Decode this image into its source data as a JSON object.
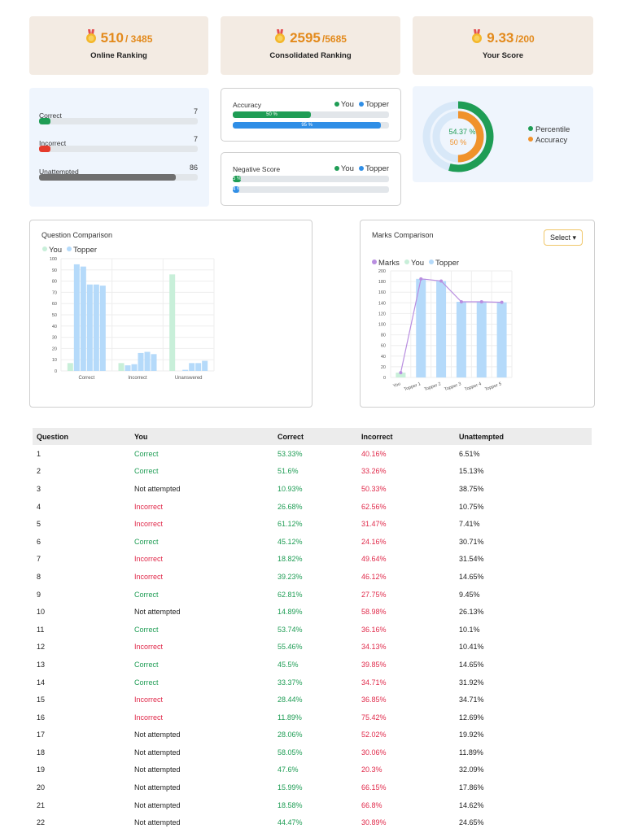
{
  "summary": {
    "online": {
      "value": "510",
      "total": "/ 3485",
      "label": "Online Ranking"
    },
    "consolidated": {
      "value": "2595",
      "total": "/5685",
      "label": "Consolidated Ranking"
    },
    "score": {
      "value": "9.33",
      "total": "/200",
      "label": "Your Score"
    }
  },
  "counts": {
    "correct": {
      "label": "Correct",
      "value": "7",
      "fraction": 0.07
    },
    "incorrect": {
      "label": "Incorrect",
      "value": "7",
      "fraction": 0.07
    },
    "unattempted": {
      "label": "Unattempted",
      "value": "86",
      "fraction": 0.86
    }
  },
  "accuracy": {
    "title": "Accuracy",
    "legend_you": "You",
    "legend_topper": "Topper",
    "you_label": "50 %",
    "you_value": 50,
    "topper_label": "95 %",
    "topper_value": 95
  },
  "negative": {
    "title": "Negative Score",
    "legend_you": "You",
    "legend_topper": "Topper",
    "you_label": "5 %",
    "you_value": 5,
    "topper_label": "4 %",
    "topper_value": 4
  },
  "donut": {
    "percentile_label": "54.37 %",
    "percentile_value": 54.37,
    "accuracy_label": "50 %",
    "accuracy_value": 50,
    "legend_percentile": "Percentile",
    "legend_accuracy": "Accuracy"
  },
  "colors": {
    "green": "#1f9d55",
    "red": "#e53b2c",
    "gray": "#6f6f6f",
    "orange": "#f0922b",
    "blue": "#2f8ee6",
    "you_light": "#c8efd9",
    "topper_light": "#b5dafa",
    "purple": "#b98ee0"
  },
  "question_comparison": {
    "title": "Question Comparison",
    "select_label": "",
    "chart_data": {
      "type": "bar",
      "categories": [
        "Correct",
        "Incorrect",
        "Unanswered"
      ],
      "ylim": [
        0,
        100
      ],
      "yticks": [
        0,
        10,
        20,
        30,
        40,
        50,
        60,
        70,
        80,
        90,
        100
      ],
      "series": [
        {
          "name": "You",
          "values": [
            7,
            7,
            86
          ]
        },
        {
          "name": "Topper",
          "values": [
            [
              95,
              93,
              77,
              77,
              76
            ],
            [
              5,
              6,
              16,
              17,
              15
            ],
            [
              0,
              1,
              7,
              7,
              9
            ]
          ]
        }
      ]
    }
  },
  "marks_comparison": {
    "title": "Marks Comparison",
    "select_label": "Select",
    "chart_data": {
      "type": "bar",
      "categories": [
        "You",
        "Topper 1",
        "Topper 2",
        "Topper 3",
        "Topper 4",
        "Topper 5"
      ],
      "ylim": [
        0,
        200
      ],
      "yticks": [
        0,
        20,
        40,
        60,
        80,
        100,
        120,
        140,
        160,
        180,
        200
      ],
      "series": [
        {
          "name": "Marks",
          "type": "line",
          "values": [
            9,
            185,
            181,
            142,
            142,
            141
          ]
        },
        {
          "name": "You",
          "values": [
            9,
            0,
            0,
            0,
            0,
            0
          ]
        },
        {
          "name": "Topper",
          "values": [
            0,
            185,
            181,
            142,
            142,
            141
          ]
        }
      ]
    }
  },
  "table": {
    "headers": [
      "Question",
      "You",
      "Correct",
      "Incorrect",
      "Unattempted"
    ],
    "rows": [
      [
        "1",
        "Correct",
        "53.33%",
        "40.16%",
        "6.51%"
      ],
      [
        "2",
        "Correct",
        "51.6%",
        "33.26%",
        "15.13%"
      ],
      [
        "3",
        "Not attempted",
        "10.93%",
        "50.33%",
        "38.75%"
      ],
      [
        "4",
        "Incorrect",
        "26.68%",
        "62.56%",
        "10.75%"
      ],
      [
        "5",
        "Incorrect",
        "61.12%",
        "31.47%",
        "7.41%"
      ],
      [
        "6",
        "Correct",
        "45.12%",
        "24.16%",
        "30.71%"
      ],
      [
        "7",
        "Incorrect",
        "18.82%",
        "49.64%",
        "31.54%"
      ],
      [
        "8",
        "Incorrect",
        "39.23%",
        "46.12%",
        "14.65%"
      ],
      [
        "9",
        "Correct",
        "62.81%",
        "27.75%",
        "9.45%"
      ],
      [
        "10",
        "Not attempted",
        "14.89%",
        "58.98%",
        "26.13%"
      ],
      [
        "11",
        "Correct",
        "53.74%",
        "36.16%",
        "10.1%"
      ],
      [
        "12",
        "Incorrect",
        "55.46%",
        "34.13%",
        "10.41%"
      ],
      [
        "13",
        "Correct",
        "45.5%",
        "39.85%",
        "14.65%"
      ],
      [
        "14",
        "Correct",
        "33.37%",
        "34.71%",
        "31.92%"
      ],
      [
        "15",
        "Incorrect",
        "28.44%",
        "36.85%",
        "34.71%"
      ],
      [
        "16",
        "Incorrect",
        "11.89%",
        "75.42%",
        "12.69%"
      ],
      [
        "17",
        "Not attempted",
        "28.06%",
        "52.02%",
        "19.92%"
      ],
      [
        "18",
        "Not attempted",
        "58.05%",
        "30.06%",
        "11.89%"
      ],
      [
        "19",
        "Not attempted",
        "47.6%",
        "20.3%",
        "32.09%"
      ],
      [
        "20",
        "Not attempted",
        "15.99%",
        "66.15%",
        "17.86%"
      ],
      [
        "21",
        "Not attempted",
        "18.58%",
        "66.8%",
        "14.62%"
      ],
      [
        "22",
        "Not attempted",
        "44.47%",
        "30.89%",
        "24.65%"
      ]
    ]
  }
}
